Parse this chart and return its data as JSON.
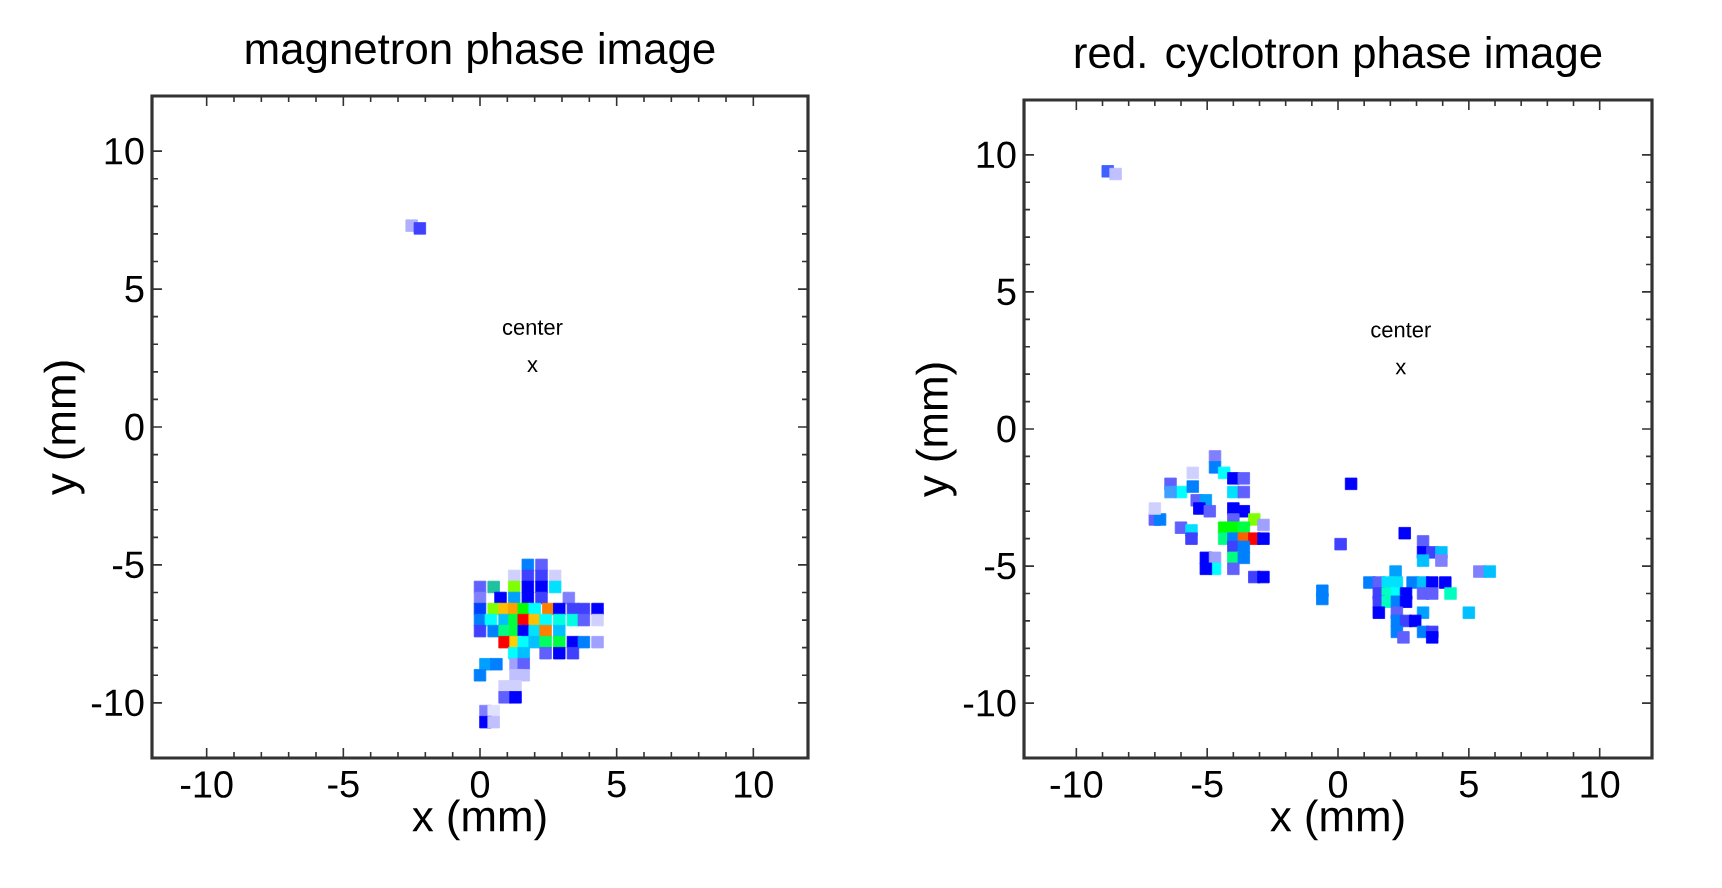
{
  "chart_data": [
    {
      "type": "scatter",
      "title": "magnetron phase image",
      "xlabel": "x (mm)",
      "ylabel": "y (mm)",
      "xlim": [
        -12,
        12
      ],
      "ylim": [
        -12,
        12
      ],
      "xticks": [
        -10,
        -5,
        0,
        5,
        10
      ],
      "yticks": [
        -10,
        -5,
        0,
        5,
        10
      ],
      "marker": "square",
      "annotations": [
        "center",
        "x"
      ],
      "series": [
        {
          "x": [
            -2.5,
            -2.2,
            1.75,
            2.25,
            1.25,
            1.75,
            2.25,
            2.75,
            0,
            0.5,
            1.25,
            1.75,
            2.25,
            2.75,
            0,
            0.75,
            1.25,
            1.75,
            2.25,
            3.25,
            0,
            0.5,
            0.9,
            1.25,
            1.6,
            2.0,
            2.5,
            2.9,
            3.4,
            3.8,
            4.3,
            0,
            0.4,
            0.9,
            1.25,
            1.6,
            2.0,
            2.4,
            2.9,
            3.4,
            3.8,
            4.3,
            0,
            0.5,
            0.9,
            1.3,
            1.6,
            2.0,
            2.4,
            2.9,
            0.9,
            1.3,
            1.6,
            2.0,
            2.4,
            2.9,
            3.4,
            3.8,
            4.3,
            1.25,
            1.6,
            2.4,
            2.9,
            3.4,
            0.2,
            0.6,
            1.3,
            1.6,
            0,
            1.3,
            1.6,
            0.9,
            1.3,
            0.9,
            1.3,
            0.2,
            0.5,
            0.2,
            0.5
          ],
          "values": [
            7.3,
            7.2,
            -5.0,
            -5.0,
            -5.4,
            -5.4,
            -5.4,
            -5.4,
            -5.8,
            -5.8,
            -5.8,
            -5.8,
            -5.8,
            -5.8,
            -6.2,
            -6.2,
            -6.2,
            -6.2,
            -6.2,
            -6.2,
            -6.6,
            -6.6,
            -6.6,
            -6.6,
            -6.6,
            -6.6,
            -6.6,
            -6.6,
            -6.6,
            -6.6,
            -6.6,
            -7.0,
            -7.0,
            -7.0,
            -7.0,
            -7.0,
            -7.0,
            -7.0,
            -7.0,
            -7.0,
            -7.0,
            -7.0,
            -7.4,
            -7.4,
            -7.4,
            -7.4,
            -7.4,
            -7.4,
            -7.4,
            -7.4,
            -7.8,
            -7.8,
            -7.8,
            -7.8,
            -7.8,
            -7.8,
            -7.8,
            -7.8,
            -7.8,
            -8.2,
            -8.2,
            -8.2,
            -8.2,
            -8.2,
            -8.6,
            -8.6,
            -8.6,
            -8.6,
            -9.0,
            -9.0,
            -9.0,
            -9.4,
            -9.4,
            -9.8,
            -9.8,
            -10.3,
            -10.3,
            -10.7,
            -10.7
          ],
          "colors": [
            "#b0b0ff",
            "#4040ff",
            "#0080ff",
            "#6060ff",
            "#d0d0ff",
            "#4040ff",
            "#4040ff",
            "#d0d0ff",
            "#6060ff",
            "#20c0a0",
            "#80ff00",
            "#0000ff",
            "#0000ff",
            "#00e0ff",
            "#8080ff",
            "#0000ff",
            "#00a0ff",
            "#0000ff",
            "#4040ff",
            "#8080ff",
            "#0040ff",
            "#80ff00",
            "#ffc000",
            "#ffa000",
            "#00ff00",
            "#00ffff",
            "#ff8000",
            "#0000ff",
            "#4040ff",
            "#4040ff",
            "#0000ff",
            "#0080ff",
            "#00ffff",
            "#00c0ff",
            "#00ff40",
            "#ff0000",
            "#ffc000",
            "#00ffff",
            "#00ffe0",
            "#00ffe0",
            "#6060ff",
            "#d0d0ff",
            "#4040ff",
            "#0080ff",
            "#00ff80",
            "#00ff40",
            "#0000ff",
            "#00e0ff",
            "#ff8000",
            "#00c0ff",
            "#ff0000",
            "#ffd000",
            "#00ffff",
            "#00c0ff",
            "#00ff60",
            "#00ff40",
            "#0000ff",
            "#0080ff",
            "#a0a0ff",
            "#00ffff",
            "#00c0ff",
            "#6060ff",
            "#0000ff",
            "#4040ff",
            "#00a0ff",
            "#0080ff",
            "#a0a0ff",
            "#6060ff",
            "#0080ff",
            "#c0c0ff",
            "#c0c0ff",
            "#d0d0ff",
            "#d0d0ff",
            "#6060ff",
            "#0000ff",
            "#8080ff",
            "#e0e0ff",
            "#0000ff",
            "#c0c0ff"
          ]
        }
      ]
    },
    {
      "type": "scatter",
      "title": "red. cyclotron phase image",
      "xlabel": "x (mm)",
      "ylabel": "y (mm)",
      "xlim": [
        -12,
        12
      ],
      "ylim": [
        -12,
        12
      ],
      "xticks": [
        -10,
        -5,
        0,
        5,
        10
      ],
      "yticks": [
        -10,
        -5,
        0,
        5,
        10
      ],
      "marker": "square",
      "annotations": [
        "center",
        "x"
      ],
      "series": [
        {
          "x": [
            -8.8,
            -8.5,
            -4.7,
            -4.7,
            -4.35,
            -5.55,
            -6.4,
            -6.0,
            -5.55,
            -6.4,
            -4.0,
            -3.6,
            -4.0,
            -3.6,
            -5.4,
            -5.05,
            -5.3,
            -4.9,
            -7.0,
            -6.8,
            -7.0,
            -4.0,
            -3.6,
            -4.0,
            -3.2,
            -2.85,
            -6.0,
            -5.6,
            -5.6,
            -4.35,
            -4.0,
            -3.6,
            -4.35,
            -4.0,
            -3.6,
            -3.2,
            -2.85,
            -4.0,
            -3.6,
            -5.05,
            -4.7,
            -4.0,
            -3.6,
            -4.7,
            -5.05,
            -4.0,
            -3.2,
            -2.85,
            0.5,
            0.1,
            2.55,
            3.25,
            3.25,
            3.6,
            3.95,
            3.25,
            3.95,
            2.2,
            5.4,
            5.8,
            -0.6,
            -0.6,
            1.2,
            1.56,
            1.9,
            2.25,
            2.85,
            3.25,
            3.6,
            4.1,
            1.56,
            1.9,
            2.25,
            2.6,
            3.25,
            3.6,
            4.3,
            1.56,
            1.9,
            2.25,
            2.6,
            1.56,
            2.25,
            3.25,
            5.0,
            2.25,
            2.6,
            2.95,
            2.25,
            3.25,
            3.6,
            2.5,
            3.6
          ],
          "values": [
            9.4,
            9.3,
            -1.0,
            -1.4,
            -1.6,
            -1.6,
            -2.0,
            -2.3,
            -2.1,
            -2.3,
            -1.8,
            -1.8,
            -2.3,
            -2.3,
            -2.6,
            -2.6,
            -2.9,
            -3.0,
            -3.3,
            -3.3,
            -2.9,
            -2.9,
            -3.0,
            -3.3,
            -3.3,
            -3.5,
            -3.6,
            -3.7,
            -4.0,
            -3.6,
            -3.6,
            -3.6,
            -4.0,
            -4.0,
            -4.0,
            -4.0,
            -4.0,
            -4.3,
            -4.3,
            -4.7,
            -4.7,
            -4.7,
            -4.7,
            -5.1,
            -5.1,
            -5.1,
            -5.4,
            -5.4,
            -2.0,
            -4.2,
            -3.8,
            -4.1,
            -4.5,
            -4.5,
            -4.5,
            -4.8,
            -4.8,
            -5.2,
            -5.2,
            -5.2,
            -5.9,
            -6.2,
            -5.6,
            -5.6,
            -5.6,
            -5.6,
            -5.6,
            -5.6,
            -5.6,
            -5.6,
            -6.0,
            -6.0,
            -6.0,
            -6.0,
            -6.0,
            -6.0,
            -6.0,
            -6.3,
            -6.3,
            -6.3,
            -6.3,
            -6.7,
            -6.7,
            -6.7,
            -6.7,
            -7.0,
            -7.0,
            -7.0,
            -7.4,
            -7.4,
            -7.4,
            -7.6,
            -7.6
          ],
          "colors": [
            "#4060ff",
            "#c0c0ff",
            "#8080ff",
            "#0080ff",
            "#00ffff",
            "#d0d0ff",
            "#6060ff",
            "#00ffff",
            "#0080ff",
            "#40a0ff",
            "#0000ff",
            "#6060ff",
            "#00e0ff",
            "#6060ff",
            "#6060ff",
            "#00a0ff",
            "#0000ff",
            "#6060ff",
            "#6060ff",
            "#0080ff",
            "#d0d0ff",
            "#0000ff",
            "#0000ff",
            "#6060ff",
            "#80ff00",
            "#a0a0ff",
            "#6060ff",
            "#00e0ff",
            "#4040ff",
            "#00ff00",
            "#00ff00",
            "#00ff40",
            "#00ff80",
            "#0080ff",
            "#ff6000",
            "#ff0000",
            "#0000ff",
            "#4040ff",
            "#0080ff",
            "#0000ff",
            "#a0a0ff",
            "#00ff80",
            "#0080ff",
            "#00ffff",
            "#0000ff",
            "#6060ff",
            "#4040ff",
            "#0000ff",
            "#0000ff",
            "#4040ff",
            "#0000ff",
            "#6060ff",
            "#0000ff",
            "#4040ff",
            "#00c0ff",
            "#00c0ff",
            "#8080ff",
            "#00a0ff",
            "#8080ff",
            "#00c0ff",
            "#0080ff",
            "#0080ff",
            "#0080ff",
            "#6060ff",
            "#00e0ff",
            "#00e0ff",
            "#0080ff",
            "#00c0ff",
            "#0000ff",
            "#0000ff",
            "#4040ff",
            "#00ffc0",
            "#00ffff",
            "#0000ff",
            "#6060ff",
            "#6060ff",
            "#00ffc0",
            "#4040ff",
            "#00ffc0",
            "#0080ff",
            "#0000ff",
            "#0000ff",
            "#6060ff",
            "#00a0ff",
            "#00c0ff",
            "#0080ff",
            "#4040ff",
            "#0000ff",
            "#0080ff",
            "#0080ff",
            "#4040ff",
            "#6060ff",
            "#0000ff"
          ]
        }
      ]
    }
  ]
}
